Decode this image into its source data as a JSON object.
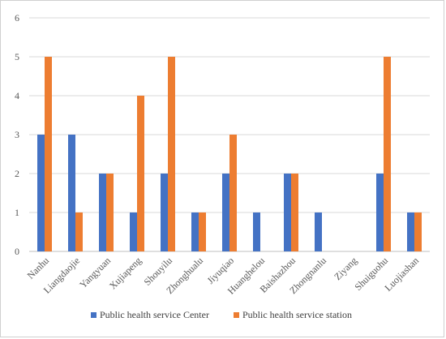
{
  "chart_data": {
    "type": "bar",
    "title": "",
    "xlabel": "",
    "ylabel": "",
    "ylim": [
      0,
      6
    ],
    "yticks": [
      0,
      1,
      2,
      3,
      4,
      5,
      6
    ],
    "grid": true,
    "legend_position": "bottom",
    "categories": [
      "Nanhu",
      "Liangdaojie",
      "Yangyuan",
      "Xujiapeng",
      "Shouyilu",
      "Zhonghualu",
      "Jiyuqiao",
      "Huanghelou",
      "Baishazhou",
      "Zhongnanlu",
      "Ziyang",
      "Shuiguohu",
      "Luojiashan"
    ],
    "series": [
      {
        "name": "Public health service Center",
        "color": "#4472C4",
        "values": [
          3,
          3,
          2,
          1,
          2,
          1,
          2,
          1,
          2,
          1,
          0,
          2,
          1
        ]
      },
      {
        "name": "Public health service station",
        "color": "#ED7D31",
        "values": [
          5,
          1,
          2,
          4,
          5,
          1,
          3,
          0,
          2,
          0,
          0,
          5,
          1
        ]
      }
    ]
  }
}
